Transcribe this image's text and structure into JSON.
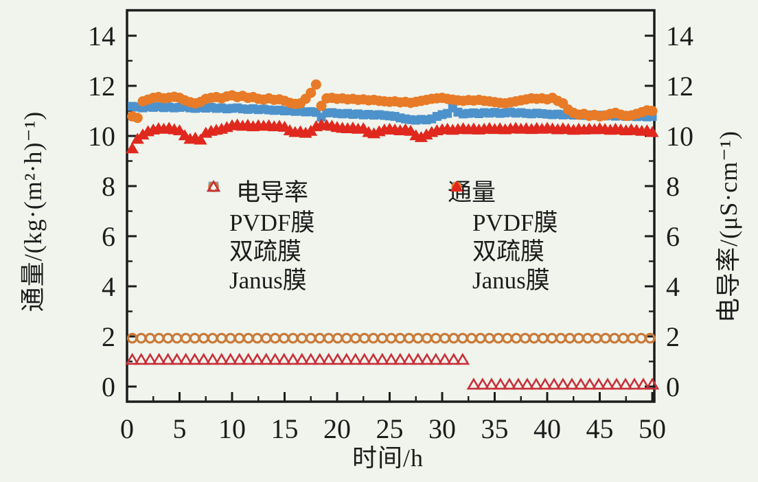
{
  "chart_data": {
    "type": "scatter",
    "title": "",
    "xlabel": "时间/h",
    "ylabel_left": "通量/(kg·(m²·h)⁻¹)",
    "ylabel_right": "电导率/(μS·cm⁻¹)",
    "xlim": [
      0,
      50
    ],
    "ylim": [
      -0.6,
      15.0
    ],
    "grid": false,
    "background": "#F0F4EC",
    "axis_color": "#1c1c1c",
    "axes": {
      "x_major": [
        0,
        5,
        10,
        15,
        20,
        25,
        30,
        35,
        40,
        45,
        50
      ],
      "x_major_labels": [
        "0",
        "5",
        "10",
        "15",
        "20",
        "25",
        "30",
        "35",
        "40",
        "45",
        "50"
      ],
      "x_minor": [
        2.5,
        7.5,
        12.5,
        17.5,
        22.5,
        27.5,
        32.5,
        37.5,
        42.5,
        47.5
      ],
      "y_major": [
        0,
        2,
        4,
        6,
        8,
        10,
        12,
        14
      ],
      "y_major_labels": [
        "0",
        "2",
        "4",
        "6",
        "8",
        "10",
        "12",
        "14"
      ],
      "y_minor": [
        1,
        3,
        5,
        7,
        9,
        11,
        13
      ]
    },
    "legend": {
      "columns": [
        {
          "header": "电导率",
          "header_indent": 46,
          "items": [
            {
              "label": "PVDF膜",
              "marker": "square",
              "variant": "open",
              "color": "#6FAFD8"
            },
            {
              "label": "双疏膜",
              "marker": "circle",
              "variant": "open",
              "color": "#C97B3B"
            },
            {
              "label": "Janus膜",
              "marker": "triangle",
              "variant": "open",
              "color": "#C8303A"
            }
          ]
        },
        {
          "header": "通量",
          "header_indent": 0,
          "items": [
            {
              "label": "PVDF膜",
              "marker": "square",
              "variant": "filled",
              "color": "#4E92CC"
            },
            {
              "label": "双疏膜",
              "marker": "circle",
              "variant": "filled",
              "color": "#E87B28"
            },
            {
              "label": "Janus膜",
              "marker": "triangle",
              "variant": "filled",
              "color": "#E0281E"
            }
          ]
        }
      ]
    },
    "series": [
      {
        "id": "flux-pvdf",
        "name": "通量 PVDF膜",
        "marker": "square",
        "variant": "filled",
        "color": "#4E92CC",
        "x0": 0.5,
        "dx": 0.5,
        "values": [
          11.18,
          11.15,
          11.12,
          11.16,
          11.14,
          11.17,
          11.13,
          11.15,
          11.12,
          11.14,
          11.16,
          11.12,
          11.1,
          11.13,
          11.11,
          11.14,
          11.1,
          11.12,
          11.08,
          11.1,
          11.12,
          11.08,
          11.06,
          11.09,
          11.05,
          11.07,
          11.04,
          11.02,
          11.03,
          11.0,
          11.01,
          10.98,
          10.99,
          10.96,
          10.97,
          10.94,
          10.75,
          10.92,
          10.93,
          10.9,
          10.88,
          10.9,
          10.86,
          10.88,
          10.84,
          10.86,
          10.83,
          10.85,
          10.82,
          10.8,
          10.78,
          10.72,
          10.68,
          10.65,
          10.63,
          10.66,
          10.64,
          10.68,
          10.78,
          10.85,
          10.9,
          11.12,
          10.95,
          10.88,
          10.9,
          10.92,
          10.89,
          10.93,
          10.91,
          10.94,
          10.9,
          10.92,
          10.95,
          10.91,
          10.93,
          10.9,
          10.88,
          10.91,
          10.89,
          10.87,
          10.85,
          10.87,
          10.84,
          10.86,
          10.83,
          10.85,
          10.82,
          10.84,
          10.81,
          10.83,
          10.8,
          10.82,
          10.79,
          10.81,
          10.78,
          10.8,
          10.77,
          10.79,
          10.76,
          10.78
        ]
      },
      {
        "id": "flux-shuangshu",
        "name": "通量 双疏膜",
        "marker": "circle",
        "variant": "filled",
        "color": "#E87B28",
        "x0": 0.5,
        "dx": 0.5,
        "values": [
          10.78,
          10.72,
          11.38,
          11.45,
          11.52,
          11.55,
          11.5,
          11.53,
          11.56,
          11.52,
          11.42,
          11.35,
          11.3,
          11.36,
          11.48,
          11.52,
          11.55,
          11.5,
          11.58,
          11.62,
          11.55,
          11.6,
          11.52,
          11.55,
          11.48,
          11.45,
          11.5,
          11.44,
          11.46,
          11.4,
          11.32,
          11.28,
          11.3,
          11.48,
          11.72,
          12.05,
          11.2,
          11.5,
          11.52,
          11.48,
          11.5,
          11.46,
          11.48,
          11.44,
          11.46,
          11.42,
          11.44,
          11.4,
          11.38,
          11.36,
          11.38,
          11.34,
          11.36,
          11.32,
          11.36,
          11.4,
          11.44,
          11.48,
          11.5,
          11.52,
          11.48,
          11.45,
          11.42,
          11.4,
          11.43,
          11.41,
          11.44,
          11.4,
          11.38,
          11.35,
          11.32,
          11.3,
          11.34,
          11.38,
          11.42,
          11.46,
          11.5,
          11.48,
          11.5,
          11.46,
          11.52,
          11.4,
          11.3,
          11.05,
          10.92,
          10.85,
          10.88,
          10.8,
          10.84,
          10.78,
          10.82,
          10.88,
          10.92,
          10.85,
          10.8,
          10.82,
          10.88,
          10.95,
          11.02,
          11.0
        ]
      },
      {
        "id": "flux-janus",
        "name": "通量 Janus膜",
        "marker": "triangle",
        "variant": "filled",
        "color": "#E0281E",
        "x0": 0.5,
        "dx": 0.5,
        "values": [
          9.5,
          9.88,
          10.05,
          10.18,
          10.25,
          10.3,
          10.28,
          10.32,
          10.26,
          10.22,
          10.02,
          9.88,
          9.92,
          9.85,
          10.12,
          10.2,
          10.24,
          10.28,
          10.35,
          10.42,
          10.45,
          10.4,
          10.44,
          10.38,
          10.42,
          10.4,
          10.42,
          10.38,
          10.4,
          10.36,
          10.22,
          10.15,
          10.18,
          10.12,
          10.2,
          10.38,
          10.45,
          10.42,
          10.4,
          10.35,
          10.32,
          10.3,
          10.33,
          10.28,
          10.3,
          10.15,
          10.1,
          10.18,
          10.25,
          10.28,
          10.25,
          10.22,
          10.26,
          10.2,
          10.02,
          9.95,
          10.05,
          10.15,
          10.22,
          10.26,
          10.28,
          10.24,
          10.27,
          10.3,
          10.26,
          10.29,
          10.25,
          10.28,
          10.31,
          10.27,
          10.3,
          10.26,
          10.29,
          10.32,
          10.28,
          10.3,
          10.27,
          10.31,
          10.28,
          10.32,
          10.29,
          10.26,
          10.3,
          10.27,
          10.24,
          10.28,
          10.25,
          10.29,
          10.26,
          10.3,
          10.27,
          10.24,
          10.28,
          10.25,
          10.22,
          10.26,
          10.23,
          10.2,
          10.22,
          10.15
        ]
      },
      {
        "id": "cond-shuangshu",
        "name": "电导率 双疏膜",
        "marker": "circle",
        "variant": "open",
        "color": "#C97B3B",
        "segments": [
          {
            "x0": 0.5,
            "dx": 0.85,
            "n": 59,
            "y": 1.93
          }
        ]
      },
      {
        "id": "cond-janus",
        "name": "电导率 Janus膜",
        "marker": "triangle",
        "variant": "open",
        "color": "#C8303A",
        "segments": [
          {
            "x0": 0.5,
            "dx": 0.85,
            "n": 38,
            "y": 1.07
          },
          {
            "x0": 33.0,
            "dx": 0.85,
            "n": 21,
            "y": 0.08
          }
        ]
      }
    ]
  }
}
